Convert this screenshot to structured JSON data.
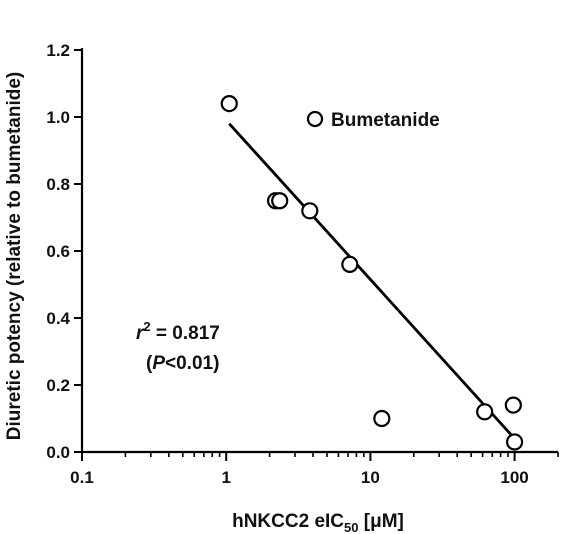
{
  "chart_data": {
    "type": "scatter",
    "x_scale": "log",
    "xlim": [
      0.1,
      200
    ],
    "ylim": [
      0.0,
      1.2
    ],
    "x_ticks": [
      0.1,
      1,
      10,
      100
    ],
    "x_tick_labels": [
      "0.1",
      "1",
      "10",
      "100"
    ],
    "y_ticks": [
      0.0,
      0.2,
      0.4,
      0.6,
      0.8,
      1.0,
      1.2
    ],
    "y_tick_labels": [
      "0.0",
      "0.2",
      "0.4",
      "0.6",
      "0.8",
      "1.0",
      "1.2"
    ],
    "xlabel_parts": {
      "main": "hNKCC2 eIC",
      "sub": "50",
      "unit": " [μM]"
    },
    "ylabel": "Diuretic potency (relative to bumetanide)",
    "points": [
      {
        "x": 1.05,
        "y": 1.04
      },
      {
        "x": 2.2,
        "y": 0.75
      },
      {
        "x": 2.35,
        "y": 0.75
      },
      {
        "x": 3.8,
        "y": 0.72
      },
      {
        "x": 7.2,
        "y": 0.56
      },
      {
        "x": 12.0,
        "y": 0.1
      },
      {
        "x": 62.0,
        "y": 0.12
      },
      {
        "x": 98.0,
        "y": 0.14
      },
      {
        "x": 100.0,
        "y": 0.03
      }
    ],
    "fit_line": {
      "x": [
        1.05,
        100.0
      ],
      "y": [
        0.98,
        0.04
      ]
    },
    "legend": {
      "label": "Bumetanide",
      "marker": "open-circle",
      "position": "top-right"
    },
    "annotation": {
      "r_symbol": "r",
      "r_exp": "2",
      "r_value_text": " = 0.817",
      "p_open": "(",
      "p_symbol": "P",
      "p_value_text": "<0.01)"
    },
    "colors": {
      "marker_stroke": "#000000",
      "marker_fill": "#ffffff",
      "line": "#000000"
    }
  }
}
